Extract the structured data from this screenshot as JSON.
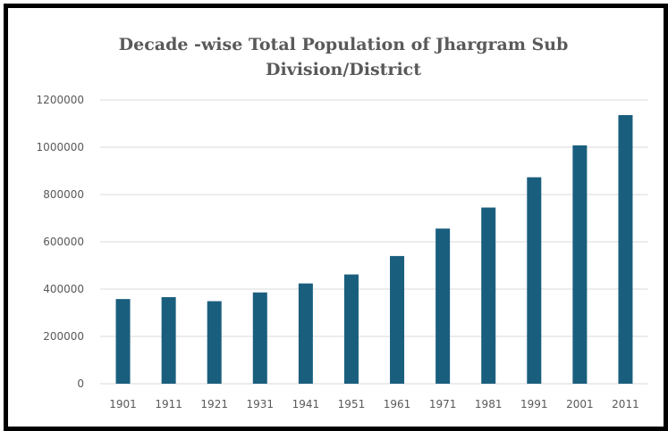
{
  "chart_data": {
    "type": "bar",
    "title_lines": [
      "Decade -wise Total Population of Jhargram Sub",
      "Division/District"
    ],
    "xlabel": "",
    "ylabel": "",
    "categories": [
      "1901",
      "1911",
      "1921",
      "1931",
      "1941",
      "1951",
      "1961",
      "1971",
      "1981",
      "1991",
      "2001",
      "2011"
    ],
    "values": [
      358000,
      366000,
      349000,
      386000,
      424000,
      462000,
      540000,
      656000,
      745000,
      873000,
      1008000,
      1136000
    ],
    "ylim": [
      0,
      1200000
    ],
    "yticks": [
      "0",
      "200000",
      "400000",
      "600000",
      "800000",
      "1000000",
      "1200000"
    ],
    "grid": true,
    "legend": "none",
    "bar_color": "#1a5e7e"
  }
}
